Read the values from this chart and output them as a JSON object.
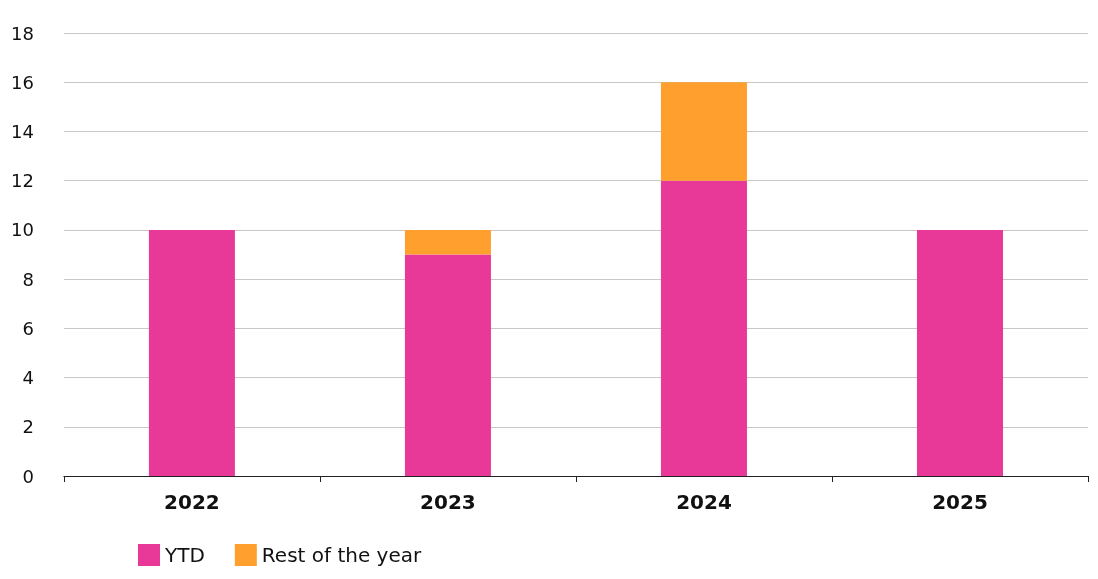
{
  "chart_data": {
    "type": "bar",
    "stacked": true,
    "categories": [
      "2022",
      "2023",
      "2024",
      "2025"
    ],
    "series": [
      {
        "name": "YTD",
        "color": "#e83898",
        "values": [
          10,
          9,
          12,
          10
        ]
      },
      {
        "name": "Rest of the year",
        "color": "#ffa02e",
        "values": [
          null,
          1,
          4,
          null
        ]
      }
    ],
    "ylim": [
      0,
      18
    ],
    "yticks": [
      0,
      2,
      4,
      6,
      8,
      10,
      12,
      14,
      16,
      18
    ],
    "grid": "y",
    "legend": "bottom left"
  }
}
